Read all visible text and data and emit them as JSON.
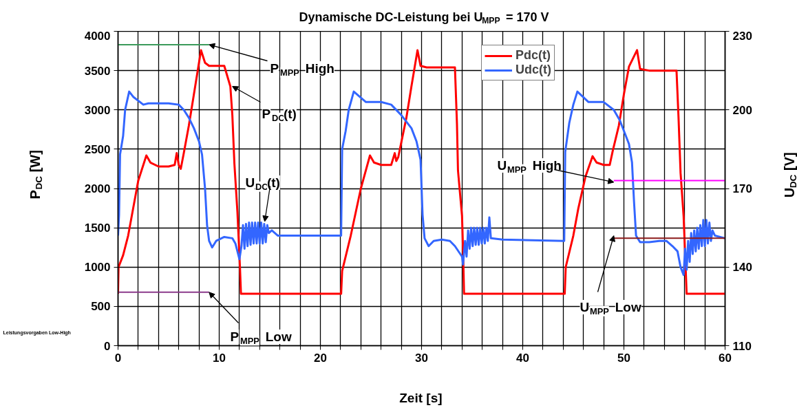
{
  "chart_data": {
    "type": "line",
    "title": "Dynamische DC-Leistung bei U$_{MPP}$ = 170 V",
    "xlabel": "Zeit [s]",
    "ylabel": "P$_{DC}$ [W]",
    "y2label": "U$_{DC}$ [V]",
    "xlim": [
      0,
      60
    ],
    "xticks": [
      0,
      {
        "value": 2,
        "label": null
      },
      {
        "value": 4,
        "label": null
      },
      {
        "value": 6,
        "label": null
      },
      {
        "value": 8,
        "label": null
      },
      10,
      {
        "value": 12,
        "label": null
      },
      {
        "value": 14,
        "label": null
      },
      {
        "value": 16,
        "label": null
      },
      {
        "value": 18,
        "label": null
      },
      20,
      {
        "value": 22,
        "label": null
      },
      {
        "value": 24,
        "label": null
      },
      {
        "value": 26,
        "label": null
      },
      {
        "value": 28,
        "label": null
      },
      30,
      {
        "value": 32,
        "label": null
      },
      {
        "value": 34,
        "label": null
      },
      {
        "value": 36,
        "label": null
      },
      {
        "value": 38,
        "label": null
      },
      40,
      {
        "value": 42,
        "label": null
      },
      {
        "value": 44,
        "label": null
      },
      {
        "value": 46,
        "label": null
      },
      {
        "value": 48,
        "label": null
      },
      50,
      {
        "value": 52,
        "label": null
      },
      {
        "value": 54,
        "label": null
      },
      {
        "value": 56,
        "label": null
      },
      {
        "value": 58,
        "label": null
      },
      60
    ],
    "ylim": [
      0,
      4000
    ],
    "yticks": [
      0,
      500,
      1000,
      1500,
      2000,
      2500,
      3000,
      3500,
      4000
    ],
    "y2lim": [
      110,
      230
    ],
    "y2ticks": [
      110,
      140,
      170,
      200,
      230
    ],
    "grid": true,
    "legend": "top right",
    "series": [
      {
        "name": "Pdc(t)",
        "color": "#ff0000",
        "x": [
          0,
          0.05,
          0.5,
          1,
          1.5,
          2,
          2.8,
          3.2,
          4,
          5,
          5.6,
          5.8,
          6.0,
          6.2,
          6.5,
          7,
          7.5,
          8.2,
          8.6,
          9,
          9.5,
          10.5,
          11.1,
          11.3,
          11.5,
          11.8,
          12.05,
          12.15,
          22.05,
          22.15,
          23,
          24,
          24.9,
          25.3,
          26,
          27,
          27.35,
          27.5,
          27.7,
          28.5,
          29,
          29.6,
          29.9,
          30.5,
          32,
          33.3,
          33.5,
          33.6,
          34.0,
          34.1,
          34.2,
          44.15,
          44.25,
          45,
          45.5,
          46.2,
          46.9,
          47.3,
          48,
          48.6,
          48.9,
          49.5,
          50,
          50.5,
          51.3,
          51.6,
          52.5,
          54,
          55.2,
          55.4,
          55.6,
          55.9,
          56.1,
          56.2,
          60
        ],
        "values": [
          660,
          1000,
          1150,
          1400,
          1750,
          2100,
          2420,
          2330,
          2280,
          2280,
          2300,
          2450,
          2300,
          2250,
          2450,
          2800,
          3200,
          3760,
          3600,
          3560,
          3560,
          3560,
          3300,
          2930,
          2320,
          1700,
          1000,
          660,
          660,
          950,
          1400,
          2000,
          2420,
          2330,
          2300,
          2300,
          2450,
          2350,
          2400,
          2900,
          3300,
          3760,
          3560,
          3540,
          3540,
          3540,
          2820,
          2230,
          1650,
          1220,
          660,
          660,
          1000,
          1400,
          1750,
          2150,
          2410,
          2330,
          2300,
          2300,
          2480,
          2800,
          3200,
          3550,
          3760,
          3520,
          3500,
          3500,
          3500,
          2900,
          2200,
          1650,
          1000,
          660,
          660
        ]
      },
      {
        "name": "Udc(t)",
        "color": "#3366ff",
        "axis": "y2",
        "x": [
          0,
          0.1,
          0.2,
          0.5,
          0.7,
          1.1,
          1.5,
          2.5,
          3,
          5,
          6,
          6.5,
          7,
          7.5,
          8,
          8.3,
          8.6,
          8.8,
          9,
          9.3,
          9.7,
          10.5,
          11.3,
          11.6,
          12,
          12.2,
          12.35,
          12.5,
          12.65,
          12.8,
          12.95,
          13.1,
          13.25,
          13.4,
          13.55,
          13.7,
          13.85,
          14.0,
          14.15,
          14.3,
          14.45,
          14.6,
          14.75,
          14.9,
          15.2,
          15.8,
          18,
          22.05,
          22.15,
          22.5,
          22.8,
          23.3,
          24.5,
          26,
          27,
          28,
          29,
          29.5,
          29.9,
          30.1,
          30.3,
          30.7,
          31.2,
          32,
          32.8,
          33.3,
          34.0,
          34.1,
          34.3,
          34.45,
          34.6,
          34.75,
          34.9,
          35.05,
          35.2,
          35.35,
          35.5,
          35.65,
          35.8,
          35.95,
          36.1,
          36.25,
          36.4,
          36.55,
          36.7,
          36.85,
          38,
          44.1,
          44.2,
          44.6,
          45,
          45.4,
          46.5,
          48,
          49,
          49.6,
          50.5,
          50.8,
          51.0,
          51.2,
          51.6,
          52.5,
          53.5,
          54.2,
          54.8,
          55.3,
          55.6,
          55.9,
          56.05,
          56.2,
          56.35,
          56.5,
          56.65,
          56.8,
          56.95,
          57.1,
          57.25,
          57.4,
          57.55,
          57.7,
          57.85,
          58.0,
          58.15,
          58.3,
          58.45,
          58.6,
          58.75,
          59,
          60
        ],
        "values": [
          152,
          160,
          183,
          190,
          200,
          207,
          205,
          202,
          202.5,
          202.5,
          202,
          200,
          197,
          193,
          188,
          183,
          170,
          156,
          150,
          147.5,
          150,
          151.5,
          151,
          149,
          143,
          148,
          156,
          147,
          156.5,
          148,
          157,
          148.5,
          157,
          149,
          157,
          149,
          157,
          149,
          157,
          149,
          156.5,
          149.5,
          156,
          153,
          154,
          152,
          152,
          152,
          185,
          192,
          200,
          207,
          203,
          203,
          202,
          198,
          193,
          188,
          181,
          160,
          151,
          148,
          150,
          150.5,
          150,
          148,
          144,
          141,
          150,
          144,
          154,
          147,
          155,
          148,
          155,
          148.5,
          155,
          148.5,
          155,
          149,
          155,
          149,
          155,
          150,
          159,
          151,
          150.5,
          150,
          184,
          195,
          202,
          207,
          203,
          203,
          200,
          196,
          187,
          180,
          165,
          152,
          149.5,
          149.5,
          150,
          150,
          148,
          146,
          140,
          137,
          147,
          139,
          150,
          142,
          153,
          145,
          154,
          146,
          155,
          147,
          156,
          148,
          158,
          148,
          158,
          149,
          157,
          150,
          154,
          152,
          151
        ]
      },
      {
        "color": "#3a9a5a",
        "x": [
          0,
          9
        ],
        "values": [
          3830,
          3830
        ]
      },
      {
        "color": "#8b3a8b",
        "x": [
          0,
          9
        ],
        "values": [
          680,
          680
        ]
      },
      {
        "color": "#ff00ff",
        "axis": "y2",
        "x": [
          49,
          60
        ],
        "values": [
          173,
          173
        ]
      },
      {
        "color": "#8b1a1a",
        "axis": "y2",
        "x": [
          49,
          60
        ],
        "values": [
          151,
          151
        ]
      }
    ],
    "annotations": [
      {
        "text": "P$_{MPP}$ High",
        "x": 9,
        "y": 3830
      },
      {
        "text": "P$_{DC}$(t)",
        "x": 11.3,
        "y": 3300
      },
      {
        "text": "U$_{DC}$(t)",
        "x": 14.5,
        "y": 1580
      },
      {
        "text": "P$_{MPP}$ Low",
        "x": 9,
        "y": 680
      },
      {
        "text": "U$_{MPP}$ High",
        "x": 49,
        "y": 2080
      },
      {
        "text": "U$_{MPP}$ Low",
        "x": 49,
        "y": 1400
      },
      "Leistungsvorgaben Low-High"
    ]
  }
}
